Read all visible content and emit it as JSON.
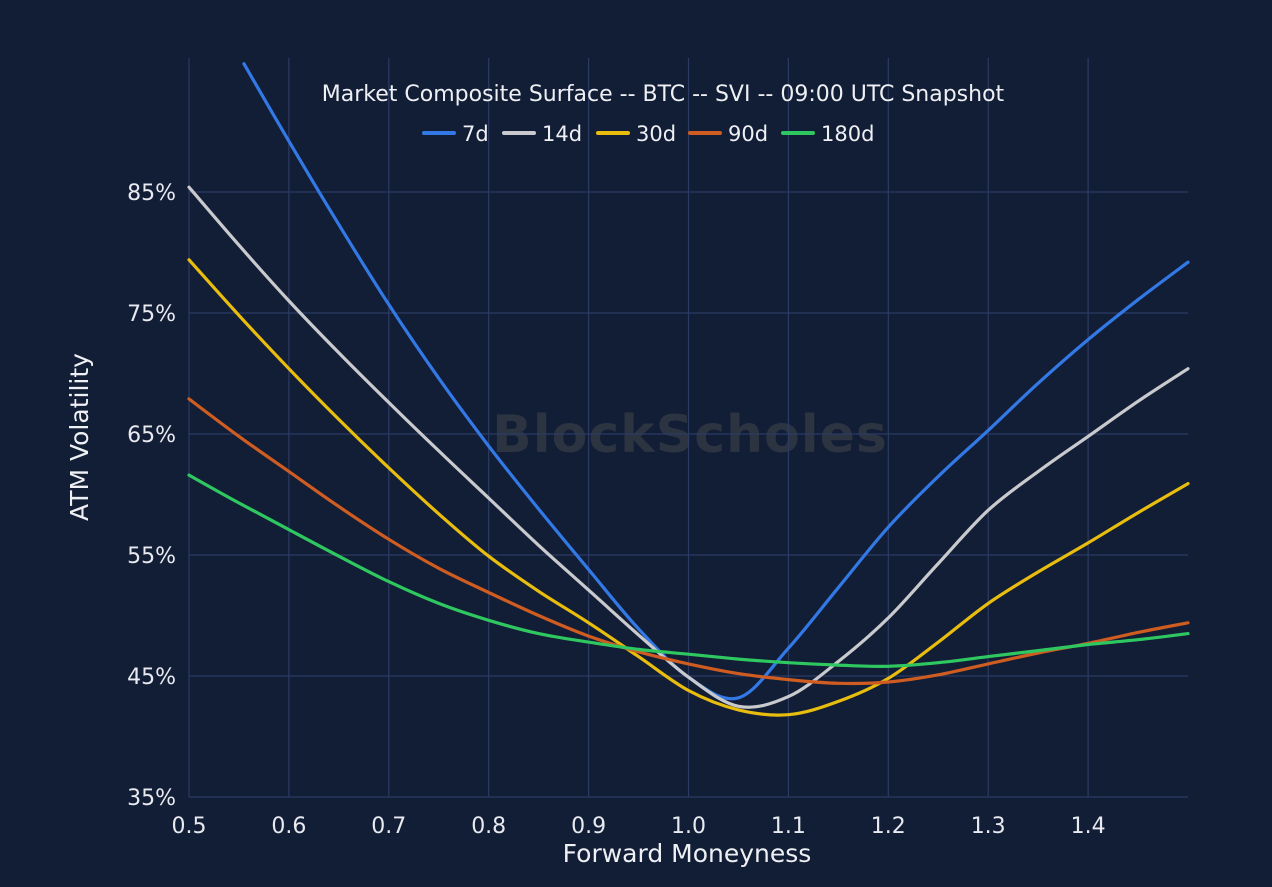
{
  "header": {
    "title": "Market Composite Surface -- BTC -- SVI -- 09:00 UTC Snapshot"
  },
  "watermark": "BlockScholes",
  "colors": {
    "background": "#121d36",
    "grid": "#2b3b63",
    "text": "#eef0f4",
    "watermark": "#8a8468",
    "series_7d": "#3379e6",
    "series_14d": "#c9cace",
    "series_30d": "#e8bd0d",
    "series_90d": "#cf5c20",
    "series_180d": "#2fc860"
  },
  "chart_data": {
    "type": "line",
    "title": "Market Composite Surface -- BTC -- SVI -- 09:00 UTC Snapshot",
    "xlabel": "Forward Moneyness",
    "ylabel": "ATM Volatility",
    "xlim": [
      0.5,
      1.5
    ],
    "ylim": [
      35,
      96
    ],
    "grid": true,
    "legend_position": "top",
    "x_ticks": [
      "0.5",
      "0.6",
      "0.7",
      "0.8",
      "0.9",
      "1.0",
      "1.1",
      "1.2",
      "1.3",
      "1.4"
    ],
    "x_tick_values": [
      0.5,
      0.6,
      0.7,
      0.8,
      0.9,
      1.0,
      1.1,
      1.2,
      1.3,
      1.4
    ],
    "y_ticks": [
      "85%",
      "75%",
      "65%",
      "55%",
      "45%",
      "35%"
    ],
    "y_tick_values": [
      85,
      75,
      65,
      55,
      45,
      35
    ],
    "series": [
      {
        "name": "7d",
        "color": "#3379e6",
        "points": [
          [
            0.555,
            95.6
          ],
          [
            0.6,
            89.2
          ],
          [
            0.65,
            82.3
          ],
          [
            0.7,
            75.7
          ],
          [
            0.75,
            69.6
          ],
          [
            0.8,
            64.0
          ],
          [
            0.85,
            58.8
          ],
          [
            0.9,
            53.8
          ],
          [
            0.95,
            48.9
          ],
          [
            1.0,
            44.9
          ],
          [
            1.05,
            43.2
          ],
          [
            1.1,
            47.3
          ],
          [
            1.15,
            52.3
          ],
          [
            1.2,
            57.3
          ],
          [
            1.25,
            61.5
          ],
          [
            1.3,
            65.3
          ],
          [
            1.35,
            69.2
          ],
          [
            1.4,
            72.8
          ],
          [
            1.45,
            76.1
          ],
          [
            1.5,
            79.2
          ]
        ]
      },
      {
        "name": "14d",
        "color": "#c9cace",
        "points": [
          [
            0.5,
            85.4
          ],
          [
            0.55,
            80.6
          ],
          [
            0.6,
            76.0
          ],
          [
            0.65,
            71.7
          ],
          [
            0.7,
            67.6
          ],
          [
            0.75,
            63.6
          ],
          [
            0.8,
            59.7
          ],
          [
            0.85,
            55.8
          ],
          [
            0.9,
            52.1
          ],
          [
            0.95,
            48.4
          ],
          [
            1.0,
            44.9
          ],
          [
            1.05,
            42.5
          ],
          [
            1.1,
            43.3
          ],
          [
            1.15,
            46.2
          ],
          [
            1.2,
            49.8
          ],
          [
            1.25,
            54.3
          ],
          [
            1.3,
            58.7
          ],
          [
            1.35,
            61.9
          ],
          [
            1.4,
            64.8
          ],
          [
            1.45,
            67.7
          ],
          [
            1.5,
            70.4
          ]
        ]
      },
      {
        "name": "30d",
        "color": "#e8bd0d",
        "points": [
          [
            0.5,
            79.4
          ],
          [
            0.55,
            74.8
          ],
          [
            0.6,
            70.4
          ],
          [
            0.65,
            66.2
          ],
          [
            0.7,
            62.2
          ],
          [
            0.75,
            58.4
          ],
          [
            0.8,
            54.9
          ],
          [
            0.85,
            52.0
          ],
          [
            0.9,
            49.4
          ],
          [
            0.95,
            46.6
          ],
          [
            1.0,
            43.8
          ],
          [
            1.05,
            42.2
          ],
          [
            1.1,
            41.8
          ],
          [
            1.15,
            42.9
          ],
          [
            1.2,
            44.8
          ],
          [
            1.25,
            47.8
          ],
          [
            1.3,
            51.0
          ],
          [
            1.35,
            53.6
          ],
          [
            1.4,
            56.0
          ],
          [
            1.45,
            58.5
          ],
          [
            1.5,
            60.9
          ]
        ]
      },
      {
        "name": "90d",
        "color": "#cf5c20",
        "points": [
          [
            0.5,
            67.9
          ],
          [
            0.55,
            64.8
          ],
          [
            0.6,
            61.9
          ],
          [
            0.65,
            59.0
          ],
          [
            0.7,
            56.3
          ],
          [
            0.75,
            53.9
          ],
          [
            0.8,
            51.9
          ],
          [
            0.85,
            50.0
          ],
          [
            0.9,
            48.3
          ],
          [
            0.95,
            47.0
          ],
          [
            1.0,
            46.0
          ],
          [
            1.05,
            45.2
          ],
          [
            1.1,
            44.7
          ],
          [
            1.15,
            44.4
          ],
          [
            1.2,
            44.5
          ],
          [
            1.25,
            45.1
          ],
          [
            1.3,
            46.0
          ],
          [
            1.35,
            46.9
          ],
          [
            1.4,
            47.7
          ],
          [
            1.45,
            48.6
          ],
          [
            1.5,
            49.4
          ]
        ]
      },
      {
        "name": "180d",
        "color": "#2fc860",
        "points": [
          [
            0.5,
            61.6
          ],
          [
            0.55,
            59.3
          ],
          [
            0.6,
            57.1
          ],
          [
            0.65,
            54.9
          ],
          [
            0.7,
            52.8
          ],
          [
            0.75,
            51.0
          ],
          [
            0.8,
            49.6
          ],
          [
            0.85,
            48.5
          ],
          [
            0.9,
            47.8
          ],
          [
            0.95,
            47.2
          ],
          [
            1.0,
            46.8
          ],
          [
            1.05,
            46.4
          ],
          [
            1.1,
            46.1
          ],
          [
            1.15,
            45.9
          ],
          [
            1.2,
            45.8
          ],
          [
            1.25,
            46.1
          ],
          [
            1.3,
            46.6
          ],
          [
            1.35,
            47.1
          ],
          [
            1.4,
            47.6
          ],
          [
            1.45,
            48.0
          ],
          [
            1.5,
            48.5
          ]
        ]
      }
    ]
  }
}
